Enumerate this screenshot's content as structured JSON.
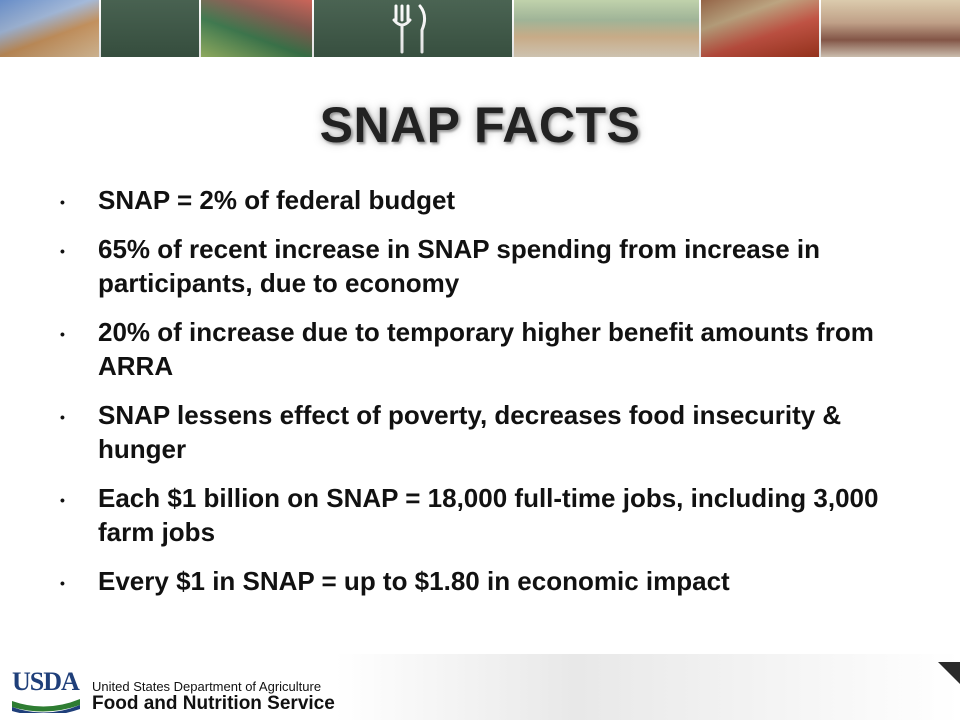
{
  "slide": {
    "title": "SNAP FACTS",
    "bullets": [
      "SNAP = 2% of federal budget",
      "65% of recent increase in SNAP spending from increase in participants, due to economy",
      "20% of increase due to temporary higher benefit amounts from ARRA",
      "SNAP lessens effect of poverty, decreases food insecurity & hunger",
      "Each $1 billion on SNAP = 18,000 full-time jobs, including 3,000 farm jobs",
      "Every $1 in SNAP = up to $1.80 in economic impact"
    ],
    "bullet_symbol": "•"
  },
  "banner": {
    "panels": [
      "basketball-photo",
      "stairs-icon",
      "family-photo",
      "fork-icon",
      "dinner-table-photo",
      "grocery-photo",
      "computer-photo"
    ],
    "background": "#3f5a48"
  },
  "footer": {
    "logo_text": "USDA",
    "department": "United States Department of Agriculture",
    "service": "Food and Nutrition Service",
    "logo_color": "#1f3f7a"
  }
}
